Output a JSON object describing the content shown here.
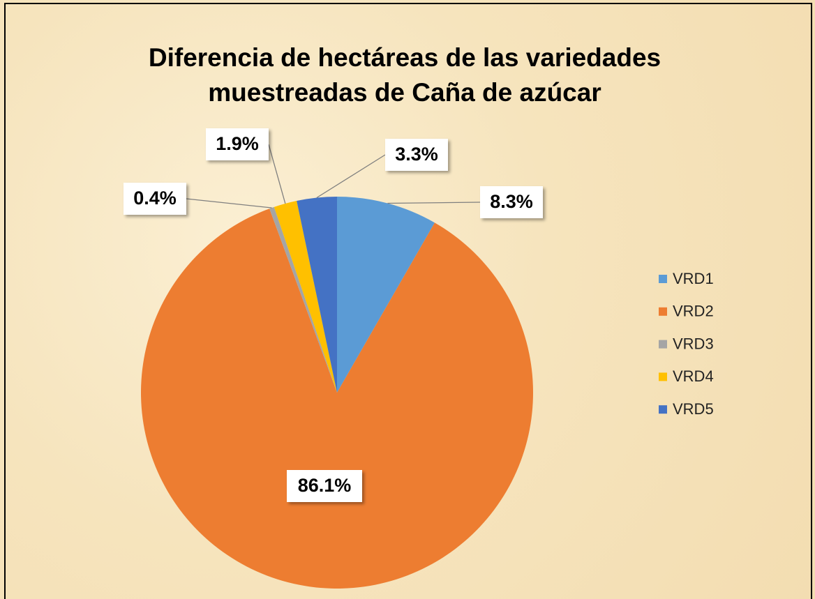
{
  "chart_data": {
    "type": "pie",
    "title": "Diferencia de hectáreas de las variedades muestreadas de Caña de azúcar",
    "categories": [
      "VRD1",
      "VRD2",
      "VRD3",
      "VRD4",
      "VRD5"
    ],
    "values": [
      8.3,
      86.1,
      0.4,
      1.9,
      3.3
    ],
    "value_labels": [
      "8.3%",
      "86.1%",
      "0.4%",
      "1.9%",
      "3.3%"
    ],
    "colors": [
      "#5b9bd5",
      "#ed7d31",
      "#a5a5a5",
      "#ffc000",
      "#4472c4"
    ],
    "legend": "right"
  }
}
